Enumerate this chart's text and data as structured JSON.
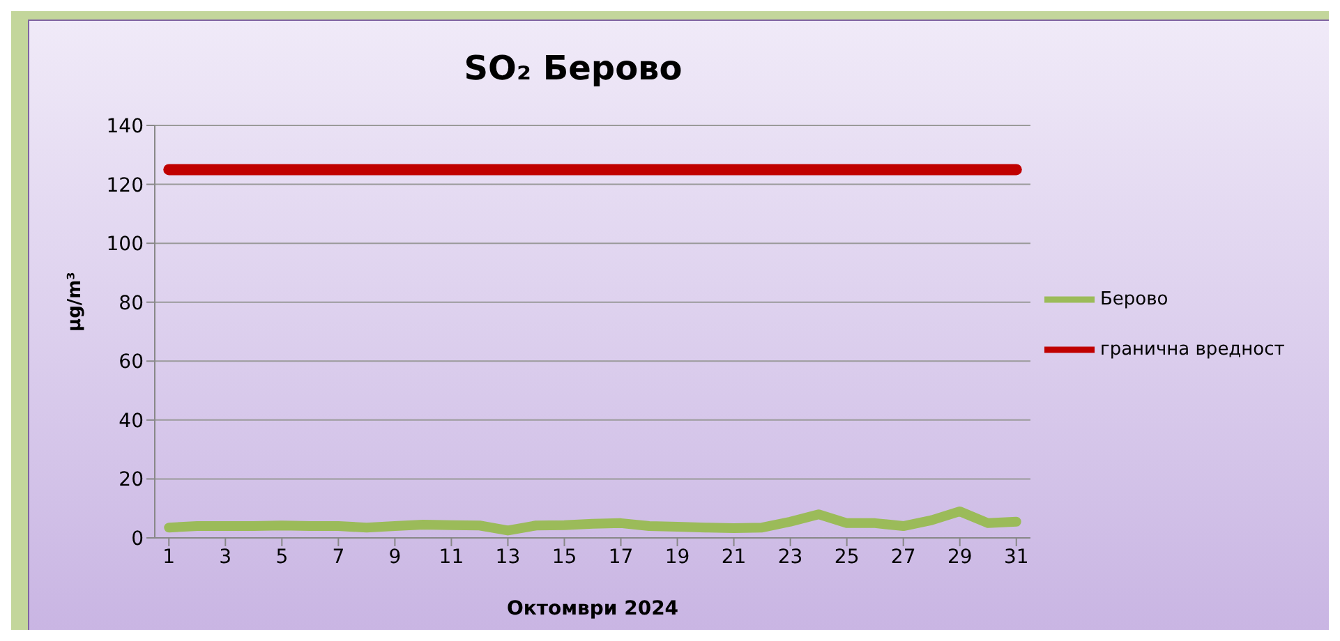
{
  "chart_data": {
    "type": "line",
    "title": "SO₂ Берово",
    "xlabel": "Октомври 2024",
    "ylabel": "µg/m³",
    "x": [
      1,
      2,
      3,
      4,
      5,
      6,
      7,
      8,
      9,
      10,
      11,
      12,
      13,
      14,
      15,
      16,
      17,
      18,
      19,
      20,
      21,
      22,
      23,
      24,
      25,
      26,
      27,
      28,
      29,
      30,
      31
    ],
    "xlim": [
      0.5,
      31.5
    ],
    "xticks": [
      1,
      3,
      5,
      7,
      9,
      11,
      13,
      15,
      17,
      19,
      21,
      23,
      25,
      27,
      29,
      31
    ],
    "series": [
      {
        "name": "Берово",
        "color": "#9bbb59",
        "values": [
          3.5,
          4,
          4,
          4,
          4.2,
          4,
          4,
          3.5,
          4,
          4.5,
          4.3,
          4.2,
          2.5,
          4.2,
          4.3,
          4.8,
          5,
          4,
          3.8,
          3.5,
          3.3,
          3.5,
          5.5,
          8,
          5,
          5,
          4,
          6,
          9,
          5,
          5.5
        ]
      },
      {
        "name": "гранична вредност",
        "color": "#c00000",
        "values": [
          125,
          125,
          125,
          125,
          125,
          125,
          125,
          125,
          125,
          125,
          125,
          125,
          125,
          125,
          125,
          125,
          125,
          125,
          125,
          125,
          125,
          125,
          125,
          125,
          125,
          125,
          125,
          125,
          125,
          125,
          125
        ]
      }
    ],
    "ylim": [
      0,
      140
    ],
    "yticks": [
      0,
      20,
      40,
      60,
      80,
      100,
      120,
      140
    ],
    "grid": "y",
    "legend": "right",
    "marker": "none",
    "line_style": "solid"
  }
}
